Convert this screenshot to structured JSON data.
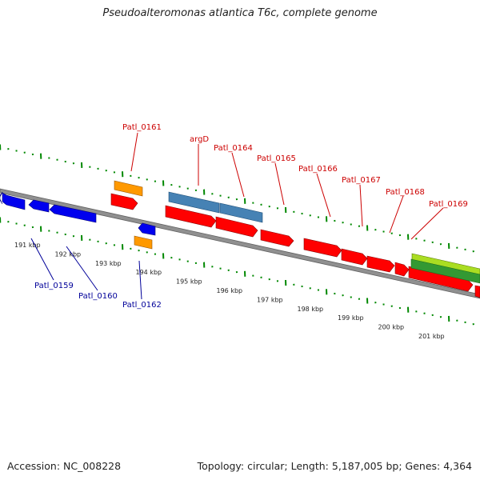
{
  "title": "Pseudoalteromonas atlantica T6c, complete genome",
  "footer": {
    "accession": "Accession: NC_008228",
    "topology": "Topology: circular; Length: 5,187,005 bp; Genes: 4,364"
  },
  "colors": {
    "plus_label": "#cc0000",
    "minus_label": "#000099",
    "plus_gene": "#ff0000",
    "minus_gene": "#0000ee",
    "rna_gene": "#ff9900",
    "special_gene": "#4682b4",
    "feature_light": "#aadd22",
    "feature_dark": "#339933",
    "backbone": "#808080",
    "tick": "#008800"
  },
  "scale_labels": [
    "191 kbp",
    "192 kbp",
    "193 kbp",
    "194 kbp",
    "195 kbp",
    "196 kbp",
    "197 kbp",
    "198 kbp",
    "199 kbp",
    "200 kbp",
    "201 kbp"
  ],
  "plus_labels": [
    "Patl_0161",
    "argD",
    "Patl_0164",
    "Patl_0165",
    "Patl_0166",
    "Patl_0167",
    "Patl_0168",
    "Patl_0169"
  ],
  "minus_labels": [
    "Patl_0159",
    "Patl_0160",
    "Patl_0162"
  ]
}
